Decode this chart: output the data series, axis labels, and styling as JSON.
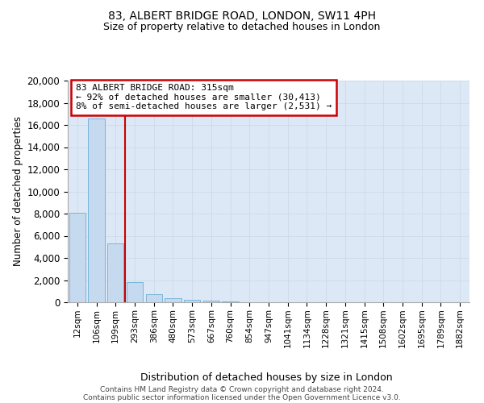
{
  "title1": "83, ALBERT BRIDGE ROAD, LONDON, SW11 4PH",
  "title2": "Size of property relative to detached houses in London",
  "xlabel": "Distribution of detached houses by size in London",
  "ylabel": "Number of detached properties",
  "categories": [
    "12sqm",
    "106sqm",
    "199sqm",
    "293sqm",
    "386sqm",
    "480sqm",
    "573sqm",
    "667sqm",
    "760sqm",
    "854sqm",
    "947sqm",
    "1041sqm",
    "1134sqm",
    "1228sqm",
    "1321sqm",
    "1415sqm",
    "1508sqm",
    "1602sqm",
    "1695sqm",
    "1789sqm",
    "1882sqm"
  ],
  "values": [
    8100,
    16600,
    5300,
    1800,
    750,
    350,
    200,
    150,
    100,
    0,
    0,
    0,
    0,
    0,
    0,
    0,
    0,
    0,
    0,
    0,
    0
  ],
  "bar_color": "#c5d9ef",
  "bar_edge_color": "#6baed6",
  "property_label": "83 ALBERT BRIDGE ROAD: 315sqm",
  "annotation_line1": "← 92% of detached houses are smaller (30,413)",
  "annotation_line2": "8% of semi-detached houses are larger (2,531) →",
  "vline_color": "#cc0000",
  "vline_x": 2.5,
  "annotation_box_color": "#cc0000",
  "ylim": [
    0,
    20000
  ],
  "yticks": [
    0,
    2000,
    4000,
    6000,
    8000,
    10000,
    12000,
    14000,
    16000,
    18000,
    20000
  ],
  "grid_color": "#c8d8e8",
  "bg_color": "#dce8f5",
  "footnote1": "Contains HM Land Registry data © Crown copyright and database right 2024.",
  "footnote2": "Contains public sector information licensed under the Open Government Licence v3.0."
}
